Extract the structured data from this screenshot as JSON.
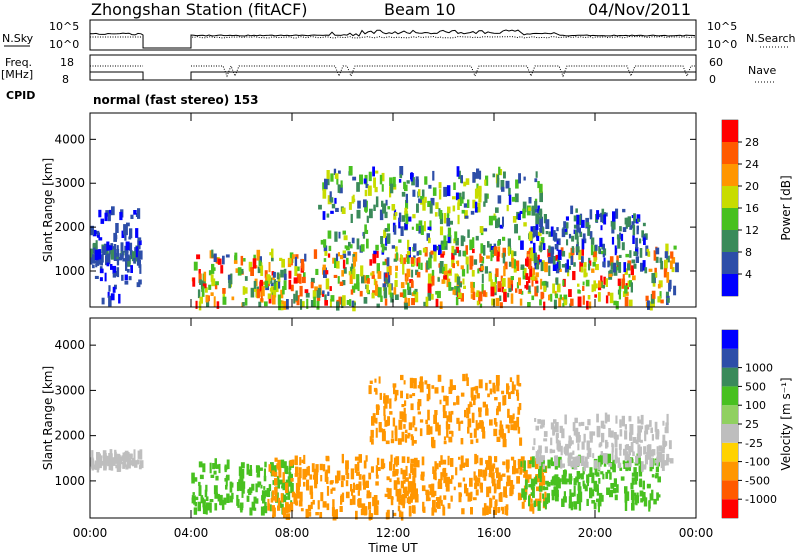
{
  "header": {
    "station": "Zhongshan Station (fitACF)",
    "beam": "Beam 10",
    "date": "04/Nov/2011"
  },
  "meta_labels": {
    "nsky": "N.Sky",
    "nsky_tick_high": "10^5",
    "nsky_tick_low": "10^0",
    "nsearch": "N.Search",
    "nsearch_tick_high": "10^5",
    "nsearch_tick_low": "10^0",
    "freq": "Freq.",
    "freq_unit": "[MHz]",
    "freq_tick_high": "18",
    "freq_tick_low": "8",
    "nave": "Nave",
    "nave_tick_high": "60",
    "nave_tick_low": "0",
    "cpid": "CPID",
    "cpid_text": "normal (fast stereo) 153"
  },
  "colors": {
    "power": [
      "#0000ff",
      "#2d4ea8",
      "#3a8a5a",
      "#48c020",
      "#c8dc00",
      "#ff9600",
      "#ff5a00",
      "#ff0000"
    ],
    "velocity": [
      "#ff0000",
      "#ff5a00",
      "#ff9600",
      "#ffd200",
      "#bebebe",
      "#90d060",
      "#48c020",
      "#3a8a5a",
      "#2d4ea8",
      "#0000ff"
    ]
  },
  "chart_data": [
    {
      "type": "heatmap",
      "title": "Power",
      "xlabel": "",
      "ylabel": "Slant Range [km]",
      "x_tick_labels": [
        "00:00",
        "04:00",
        "08:00",
        "12:00",
        "16:00",
        "20:00",
        "00:00"
      ],
      "x_range_hours": [
        0,
        24
      ],
      "ylim": [
        180,
        4600
      ],
      "y_tick_labels": [
        "1000",
        "2000",
        "3000",
        "4000"
      ],
      "colorbar": {
        "label": "Power [dB]",
        "ticks": [
          "4",
          "8",
          "12",
          "16",
          "20",
          "24",
          "28"
        ],
        "range": [
          0,
          32
        ]
      },
      "data_gaps_hours": [
        [
          2.1,
          4.0
        ]
      ],
      "echo_regions": [
        {
          "t_start": 0.0,
          "t_end": 2.0,
          "range_km": [
            1200,
            1600
          ],
          "power_db": [
            4,
            10
          ]
        },
        {
          "t_start": 0.0,
          "t_end": 2.0,
          "range_km": [
            300,
            2400
          ],
          "power_db": [
            2,
            8
          ]
        },
        {
          "t_start": 4.0,
          "t_end": 13.0,
          "range_km": [
            200,
            1400
          ],
          "power_db": [
            6,
            30
          ]
        },
        {
          "t_start": 9.0,
          "t_end": 18.0,
          "range_km": [
            1400,
            3300
          ],
          "power_db": [
            2,
            20
          ]
        },
        {
          "t_start": 13.0,
          "t_end": 21.5,
          "range_km": [
            200,
            1500
          ],
          "power_db": [
            8,
            30
          ]
        },
        {
          "t_start": 17.5,
          "t_end": 22.0,
          "range_km": [
            1000,
            2400
          ],
          "power_db": [
            2,
            12
          ]
        },
        {
          "t_start": 22.0,
          "t_end": 23.2,
          "range_km": [
            200,
            1600
          ],
          "power_db": [
            4,
            28
          ]
        }
      ]
    },
    {
      "type": "heatmap",
      "title": "Velocity",
      "xlabel": "Time UT",
      "ylabel": "Slant Range [km]",
      "x_tick_labels": [
        "00:00",
        "04:00",
        "08:00",
        "12:00",
        "16:00",
        "20:00",
        "00:00"
      ],
      "x_range_hours": [
        0,
        24
      ],
      "ylim": [
        180,
        4600
      ],
      "y_tick_labels": [
        "1000",
        "2000",
        "3000",
        "4000"
      ],
      "colorbar": {
        "label": "Velocity [m s⁻¹]",
        "ticks": [
          "-1000",
          "-500",
          "-100",
          "-25",
          "25",
          "100",
          "500",
          "1000"
        ]
      },
      "data_gaps_hours": [
        [
          2.1,
          4.0
        ]
      ],
      "echo_regions": [
        {
          "t_start": 0.0,
          "t_end": 2.0,
          "range_km": [
            1300,
            1600
          ],
          "velocity_ms": [
            -25,
            25
          ]
        },
        {
          "t_start": 4.0,
          "t_end": 8.0,
          "range_km": [
            300,
            1400
          ],
          "velocity_ms": [
            100,
            500
          ]
        },
        {
          "t_start": 7.0,
          "t_end": 13.0,
          "range_km": [
            200,
            1500
          ],
          "velocity_ms": [
            -500,
            -100
          ]
        },
        {
          "t_start": 12.0,
          "t_end": 18.0,
          "range_km": [
            300,
            1500
          ],
          "velocity_ms": [
            -300,
            -100
          ]
        },
        {
          "t_start": 11.0,
          "t_end": 17.0,
          "range_km": [
            1800,
            3300
          ],
          "velocity_ms": [
            -500,
            -100
          ]
        },
        {
          "t_start": 17.0,
          "t_end": 22.5,
          "range_km": [
            400,
            1500
          ],
          "velocity_ms": [
            100,
            300
          ]
        },
        {
          "t_start": 17.5,
          "t_end": 23.0,
          "range_km": [
            1300,
            2400
          ],
          "velocity_ms": [
            -25,
            25
          ]
        }
      ]
    }
  ]
}
